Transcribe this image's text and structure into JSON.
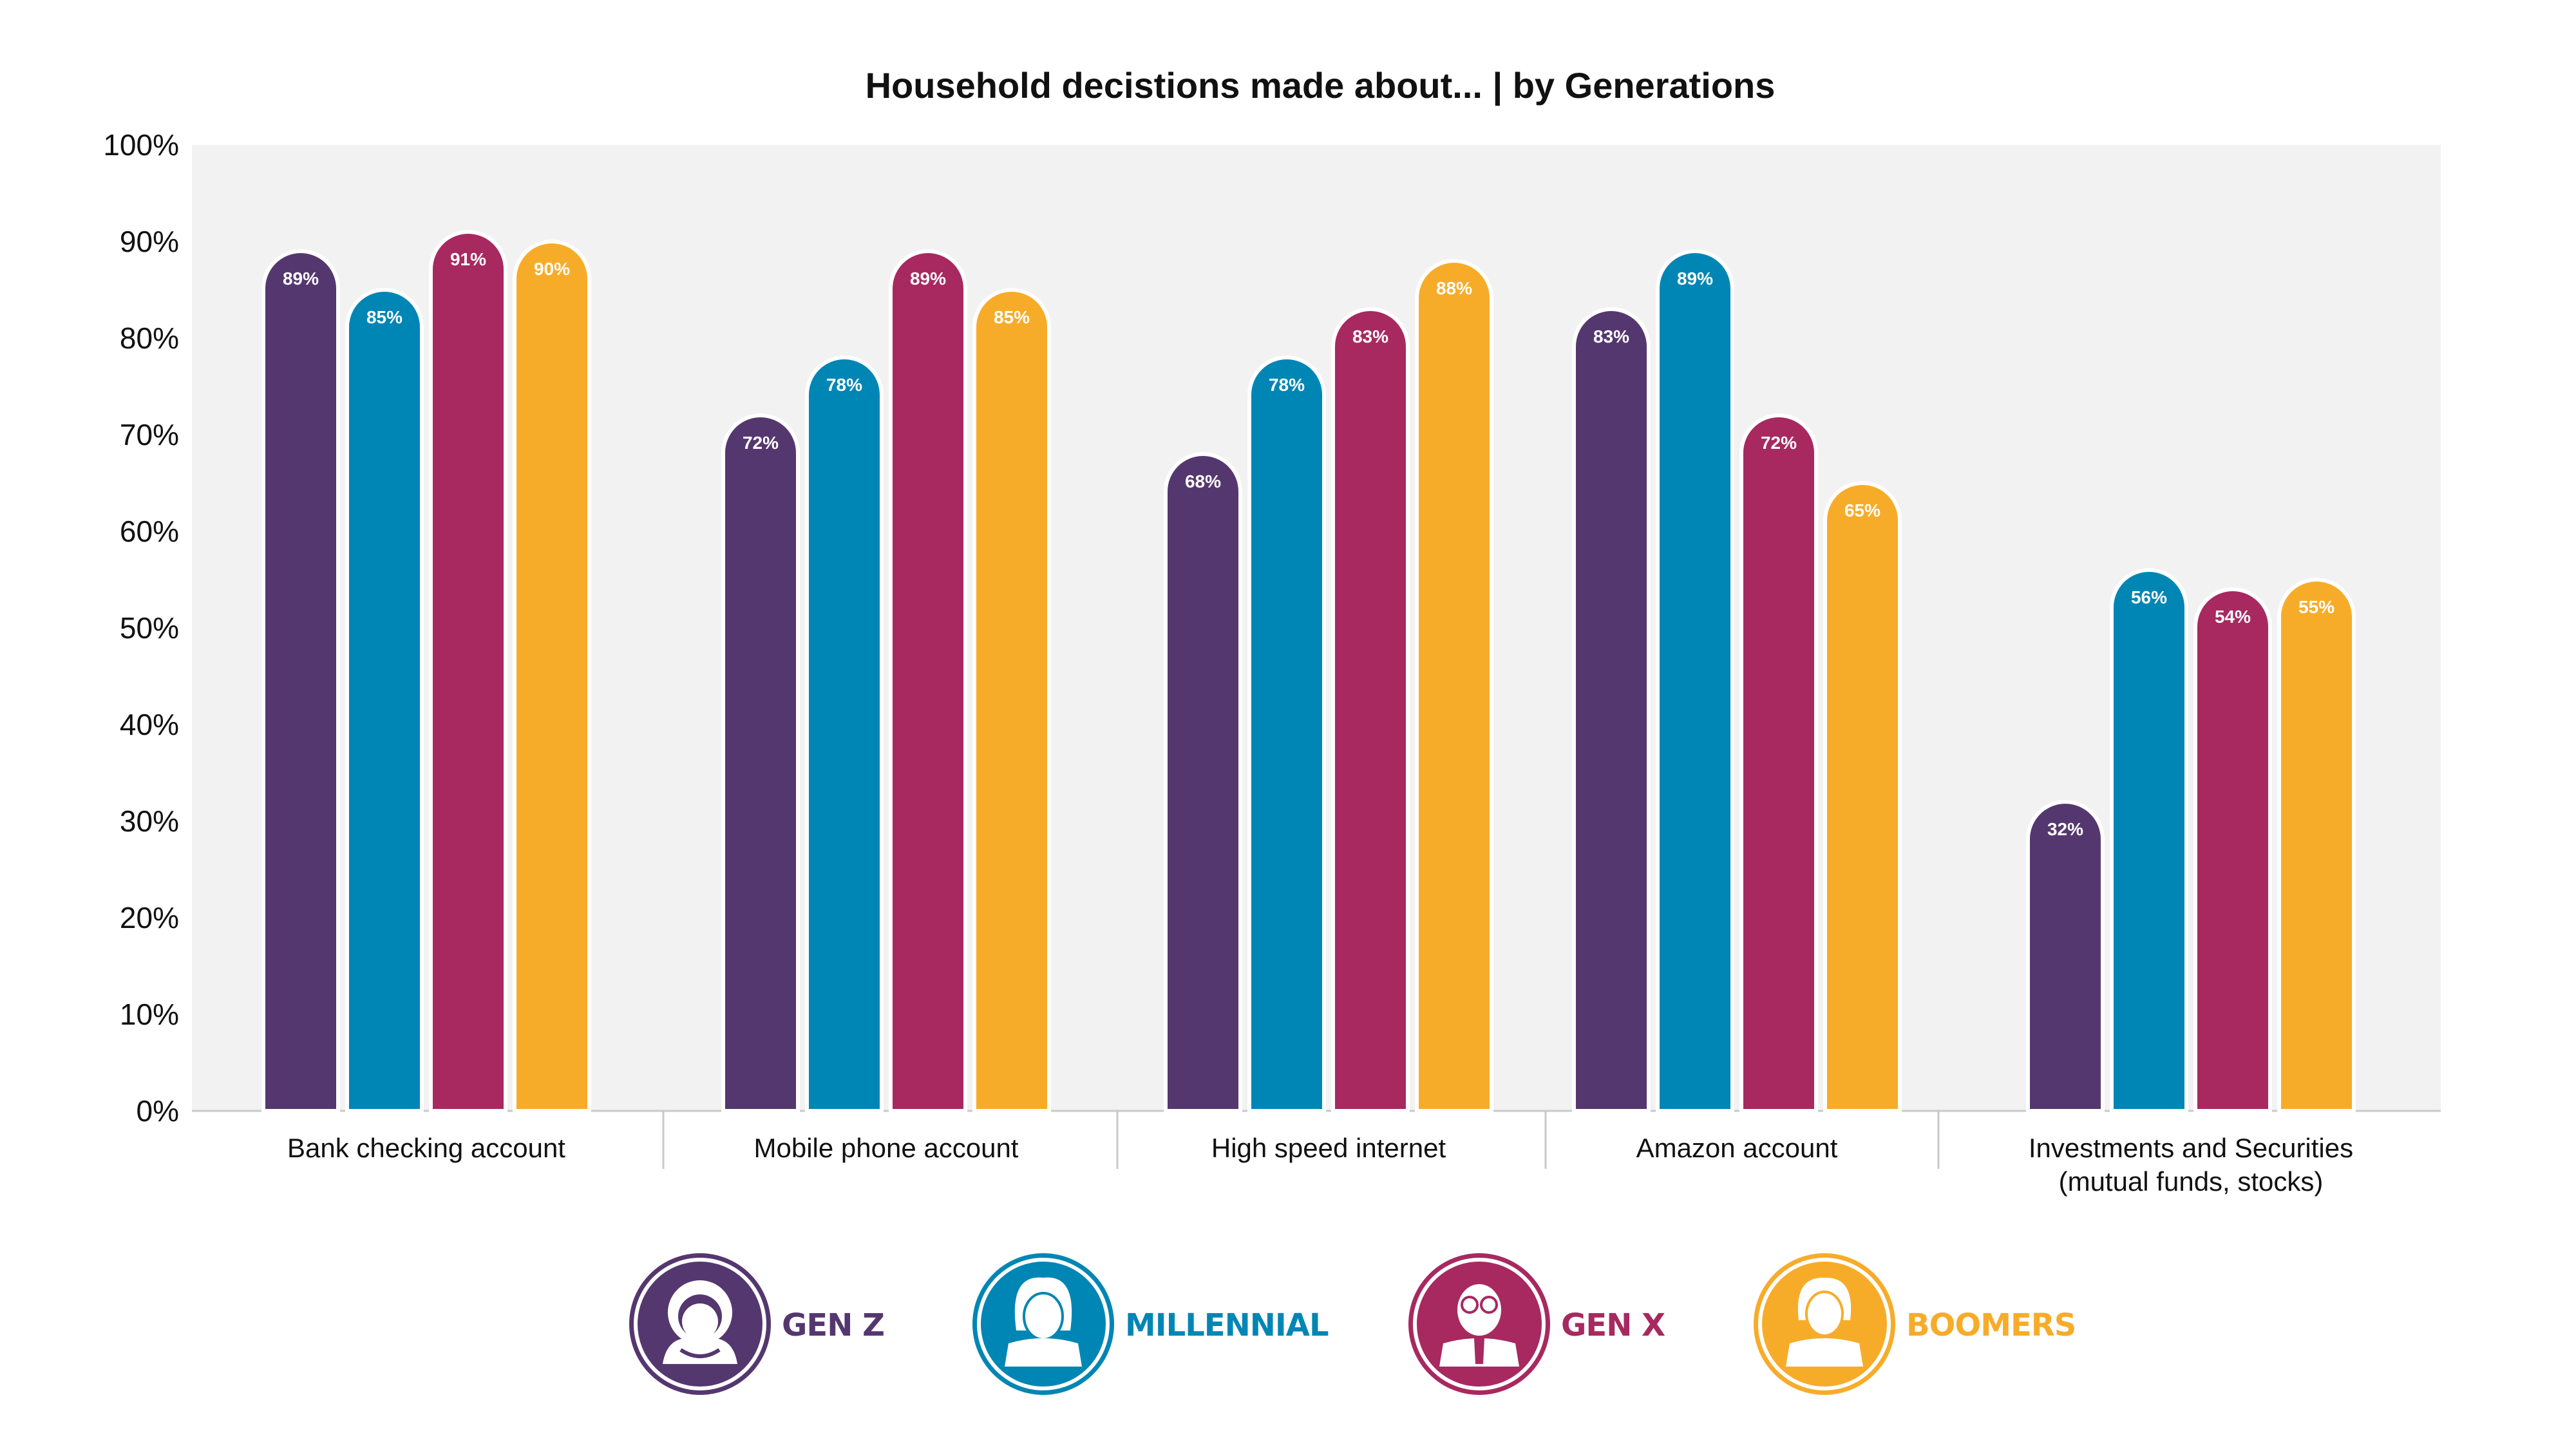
{
  "chart_data": {
    "type": "bar",
    "title": "Household decistions made about... | by Generations",
    "xlabel": "",
    "ylabel": "",
    "ylim": [
      0,
      100
    ],
    "y_ticks": [
      "0%",
      "10%",
      "20%",
      "30%",
      "40%",
      "50%",
      "60%",
      "70%",
      "80%",
      "90%",
      "100%"
    ],
    "categories": [
      [
        "Bank checking account"
      ],
      [
        "Mobile phone account"
      ],
      [
        "High speed internet"
      ],
      [
        "Amazon account"
      ],
      [
        "Investments and Securities",
        "(mutual funds, stocks)"
      ]
    ],
    "series": [
      {
        "name": "GEN Z",
        "color": "#55376F",
        "icon": "gen-z-person-icon",
        "values": [
          89,
          72,
          68,
          83,
          32
        ]
      },
      {
        "name": "MILLENNIAL",
        "color": "#0086B4",
        "icon": "millennial-person-icon",
        "values": [
          85,
          78,
          78,
          89,
          56
        ]
      },
      {
        "name": "GEN X",
        "color": "#A72960",
        "icon": "gen-x-person-icon",
        "values": [
          91,
          89,
          83,
          72,
          54
        ]
      },
      {
        "name": "BOOMERS",
        "color": "#F7AC29",
        "icon": "boomers-person-icon",
        "values": [
          90,
          85,
          88,
          65,
          55
        ]
      }
    ],
    "value_suffix": "%",
    "grid": false,
    "plot_background": "#F2F2F2",
    "legend_position": "bottom"
  }
}
